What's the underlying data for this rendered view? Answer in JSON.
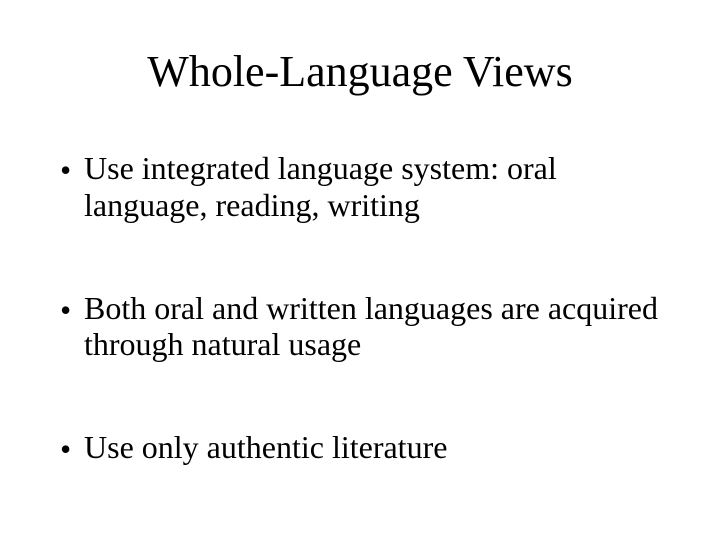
{
  "slide": {
    "title": "Whole-Language Views",
    "title_fontsize": 44,
    "body_fontsize": 32,
    "font_family": "Times New Roman",
    "text_color": "#000000",
    "background_color": "#ffffff",
    "bullets": [
      {
        "marker": "•",
        "text": "Use integrated language system: oral language, reading, writing"
      },
      {
        "marker": "•",
        "text": "Both oral and written languages are acquired through natural usage"
      },
      {
        "marker": "•",
        "text": "Use only authentic literature"
      }
    ]
  }
}
